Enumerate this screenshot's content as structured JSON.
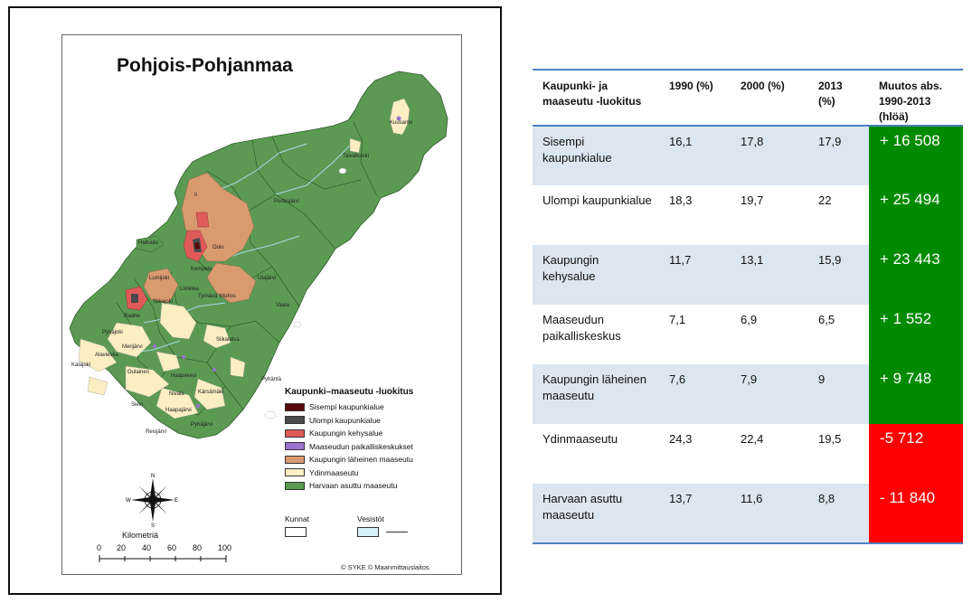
{
  "map": {
    "title": "Pohjois-Pohjanmaa",
    "legend_title": "Kaupunki–maaseutu -luokitus",
    "legend": [
      {
        "label": "Sisempi kaupunkialue",
        "color": "#5a0a0a"
      },
      {
        "label": "Ulompi kaupunkialue",
        "color": "#4a4a4a"
      },
      {
        "label": "Kaupungin kehysalue",
        "color": "#e05a5a"
      },
      {
        "label": "Maaseudun paikalliskeskukset",
        "color": "#9b72cf"
      },
      {
        "label": "Kaupungin läheinen maaseutu",
        "color": "#d99a70"
      },
      {
        "label": "Ydinmaaseutu",
        "color": "#fbeec3"
      },
      {
        "label": "Harvaan asuttu maaseutu",
        "color": "#5c9a54"
      }
    ],
    "kunnat_label": "Kunnat",
    "vesistot_label": "Vesistöt",
    "scale_title": "Kilometriä",
    "scale_ticks": [
      "0",
      "20",
      "40",
      "60",
      "80",
      "100"
    ],
    "compass": {
      "n": "N",
      "s": "S",
      "e": "E",
      "w": "W"
    },
    "copyright": "© SYKE © Maanmittauslaitos",
    "places": [
      "Kuusamo",
      "Taivalkoski",
      "Pudasjärvi",
      "Ii",
      "Oulu",
      "Hailuoto",
      "Kempele",
      "Utajärvi",
      "Lumijoki",
      "Liminka",
      "Tyrnävä",
      "Muhos",
      "Raahe",
      "Siikajoki",
      "Pyhäjoki",
      "Merijärvi",
      "Alavieska",
      "Kalajoki",
      "Siikalatva",
      "Haapavesi",
      "Oulainen",
      "Vaala",
      "Nivala",
      "Kärsämäki",
      "Sievi",
      "Haapajärvi",
      "Reisjärvi",
      "Pyhäjärvi",
      "Pyhäntä"
    ]
  },
  "table": {
    "headers": [
      "Kaupunki- ja maaseutu -luokitus",
      "1990 (%)",
      "2000 (%)",
      "2013 (%)",
      "Muutos abs. 1990-2013 (hlöä)"
    ],
    "rows": [
      {
        "class": "Sisempi kaupunkialue",
        "y1990": "16,1",
        "y2000": "17,8",
        "y2013": "17,9",
        "change": "+ 16 508"
      },
      {
        "class": "Ulompi kaupunkialue",
        "y1990": "18,3",
        "y2000": "19,7",
        "y2013": "22",
        "change": "+ 25 494"
      },
      {
        "class": "Kaupungin kehysalue",
        "y1990": "11,7",
        "y2000": "13,1",
        "y2013": "15,9",
        "change": "+ 23 443"
      },
      {
        "class": "Maaseudun paikalliskeskus",
        "y1990": "7,1",
        "y2000": "6,9",
        "y2013": "6,5",
        "change": "+ 1 552"
      },
      {
        "class": "Kaupungin läheinen maaseutu",
        "y1990": "7,6",
        "y2000": "7,9",
        "y2013": "9",
        "change": "+ 9 748"
      },
      {
        "class": "Ydinmaaseutu",
        "y1990": "24,3",
        "y2000": "22,4",
        "y2013": "19,5",
        "change": "-5 712"
      },
      {
        "class": "Harvaan asuttu maaseutu",
        "y1990": "13,7",
        "y2000": "11,6",
        "y2013": "8,8",
        "change": "- 11 840"
      }
    ],
    "colors": {
      "header_rule": "#4f81bd",
      "alt_row": "#dce6f1",
      "positive": "#008a00",
      "negative": "#ff0000"
    }
  }
}
